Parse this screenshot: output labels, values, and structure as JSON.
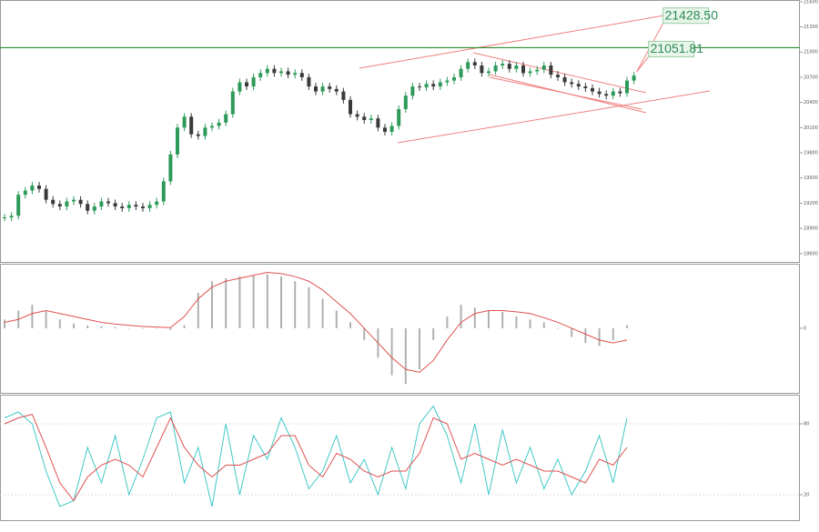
{
  "chart_data": [
    {
      "type": "candlestick",
      "color_up": "#2e9a5a",
      "color_down": "#3a3a3a",
      "values": [
        19030,
        19050,
        19300,
        19350,
        19410,
        19370,
        19240,
        19190,
        19160,
        19220,
        19240,
        19190,
        19110,
        19160,
        19220,
        19200,
        19160,
        19140,
        19180,
        19160,
        19140,
        19180,
        19220,
        19460,
        19780,
        20100,
        20230,
        20020,
        20000,
        20100,
        20120,
        20160,
        20260,
        20530,
        20640,
        20590,
        20700,
        20750,
        20800,
        20750,
        20770,
        20730,
        20750,
        20700,
        20590,
        20530,
        20590,
        20560,
        20530,
        20430,
        20260,
        20230,
        20190,
        20210,
        20100,
        20050,
        20120,
        20320,
        20480,
        20590,
        20580,
        20620,
        20590,
        20640,
        20660,
        20700,
        20800,
        20880,
        20840,
        20750,
        20770,
        20840,
        20860,
        20800,
        20840,
        20750,
        20770,
        20790,
        20840,
        20730,
        20700,
        20640,
        20620,
        20590,
        20570,
        20530,
        20500,
        20480,
        20530,
        20510,
        20660,
        20720
      ],
      "ylim": [
        18500,
        21620
      ],
      "yticks": [
        18600,
        18900,
        19200,
        19500,
        19800,
        20100,
        20400,
        20700,
        21000,
        21300,
        21600
      ],
      "annotations": [
        {
          "value": 21428.5,
          "label": "21428.50"
        },
        {
          "value": 21051.81,
          "label": "21051.81"
        }
      ]
    },
    {
      "type": "macd",
      "hist_color": "#b0b0b0",
      "signal_color": "#e05050",
      "histogram": [
        45,
        90,
        120,
        90,
        45,
        24,
        15,
        9,
        6,
        0,
        0,
        0,
        -9,
        15,
        180,
        240,
        255,
        264,
        270,
        276,
        264,
        240,
        210,
        150,
        90,
        30,
        -60,
        -150,
        -240,
        -285,
        -210,
        -60,
        60,
        120,
        105,
        90,
        84,
        60,
        45,
        30,
        0,
        -45,
        -75,
        -90,
        -60,
        15
      ],
      "signal": [
        30,
        45,
        75,
        90,
        75,
        60,
        45,
        30,
        21,
        15,
        9,
        6,
        3,
        60,
        150,
        210,
        240,
        255,
        270,
        285,
        279,
        264,
        240,
        195,
        135,
        75,
        0,
        -75,
        -150,
        -210,
        -225,
        -165,
        -60,
        30,
        75,
        90,
        90,
        84,
        75,
        54,
        30,
        0,
        -30,
        -60,
        -75,
        -60
      ],
      "ylim": [
        -330,
        320
      ],
      "yticks": [
        0
      ]
    },
    {
      "type": "stochastic",
      "k_color": "#40c8c8",
      "d_color": "#e05050",
      "k": [
        85,
        90,
        80,
        40,
        10,
        15,
        60,
        30,
        70,
        20,
        50,
        85,
        90,
        30,
        60,
        10,
        80,
        20,
        70,
        50,
        85,
        60,
        25,
        40,
        70,
        30,
        50,
        20,
        60,
        25,
        80,
        95,
        70,
        30,
        80,
        20,
        75,
        30,
        60,
        25,
        50,
        20,
        40,
        70,
        30,
        85
      ],
      "d": [
        80,
        85,
        88,
        60,
        30,
        15,
        35,
        45,
        50,
        45,
        35,
        60,
        85,
        60,
        45,
        35,
        45,
        45,
        50,
        55,
        70,
        70,
        45,
        35,
        55,
        50,
        40,
        35,
        40,
        40,
        55,
        85,
        80,
        50,
        55,
        50,
        45,
        50,
        45,
        40,
        40,
        35,
        30,
        50,
        45,
        60
      ],
      "ylim": [
        0,
        100
      ],
      "yticks": [
        20,
        80
      ]
    }
  ]
}
